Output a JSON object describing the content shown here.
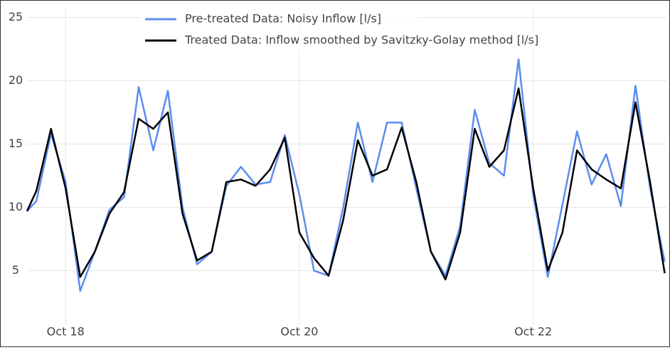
{
  "chart_data": {
    "type": "line",
    "x": [
      17.67,
      17.75,
      17.875,
      18.0,
      18.125,
      18.25,
      18.375,
      18.5,
      18.625,
      18.75,
      18.875,
      19.0,
      19.125,
      19.25,
      19.375,
      19.5,
      19.625,
      19.75,
      19.875,
      20.0,
      20.125,
      20.25,
      20.375,
      20.5,
      20.625,
      20.75,
      20.875,
      21.0,
      21.125,
      21.25,
      21.375,
      21.5,
      21.625,
      21.75,
      21.875,
      22.0,
      22.125,
      22.25,
      22.375,
      22.5,
      22.625,
      22.75,
      22.875,
      23.0,
      23.125
    ],
    "series": [
      {
        "name": "Pre-treated Data: Noisy Inflow [l/s]",
        "color": "#5b8def",
        "values": [
          9.7,
          10.5,
          15.8,
          12,
          3.4,
          6.5,
          9.8,
          10.8,
          19.5,
          14.5,
          19.2,
          10,
          5.5,
          6.5,
          11.7,
          13.2,
          11.8,
          12,
          15.7,
          11,
          5,
          4.6,
          10,
          16.7,
          12,
          16.7,
          16.7,
          11.5,
          6.5,
          4.6,
          8.5,
          17.7,
          13.5,
          12.5,
          21.7,
          11,
          4.5,
          10.2,
          16,
          11.8,
          14.2,
          10.1,
          19.6,
          11.5,
          5.7
        ]
      },
      {
        "name": "Treated Data: Inflow smoothed by Savitzky-Golay method [l/s]",
        "color": "#000000",
        "values": [
          9.7,
          11.3,
          16.2,
          11.5,
          4.5,
          6.5,
          9.5,
          11.2,
          17,
          16.2,
          17.5,
          9.5,
          5.8,
          6.5,
          12,
          12.2,
          11.7,
          13,
          15.5,
          8,
          6,
          4.6,
          9,
          15.3,
          12.5,
          13,
          16.3,
          12,
          6.5,
          4.3,
          8,
          16.2,
          13.2,
          14.5,
          19.4,
          11.5,
          5,
          8,
          14.5,
          13,
          12.2,
          11.5,
          18.3,
          12,
          4.8
        ]
      }
    ],
    "xlim": [
      17.67,
      23.14
    ],
    "xticks": [
      {
        "value": 18,
        "label": "Oct 18"
      },
      {
        "value": 20,
        "label": "Oct 20"
      },
      {
        "value": 22,
        "label": "Oct 22"
      }
    ],
    "ylim": [
      0.7,
      25.7
    ],
    "yticks": [
      5,
      10,
      15,
      20,
      25
    ],
    "grid": true,
    "legend": "top"
  }
}
